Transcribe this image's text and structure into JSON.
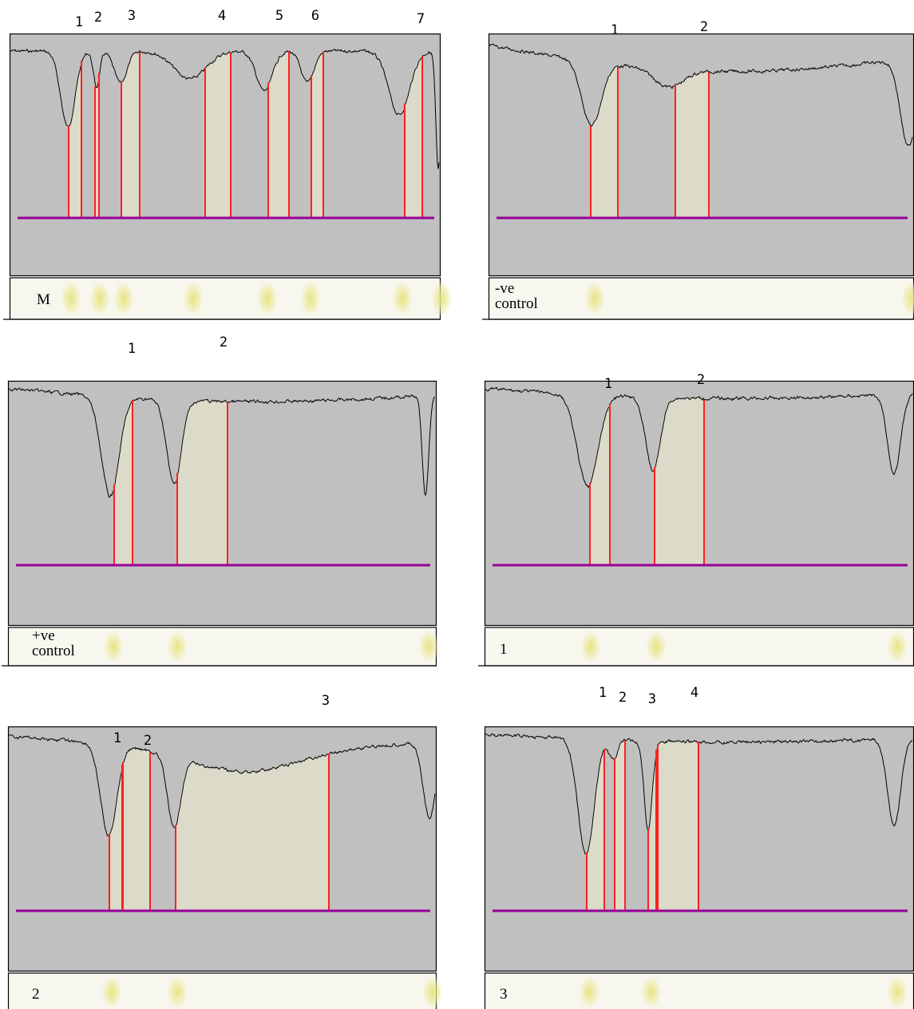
{
  "panels": [
    {
      "lane_label": "M",
      "peak_labels": [
        "1",
        "2",
        "3",
        "4",
        "5",
        "6",
        "7"
      ]
    },
    {
      "lane_label": "-ve control",
      "peak_labels": [
        "1",
        "2"
      ]
    },
    {
      "lane_label": "+ve control",
      "peak_labels": [
        "1",
        "2"
      ]
    },
    {
      "lane_label": "1",
      "peak_labels": [
        "1",
        "2"
      ]
    },
    {
      "lane_label": "2",
      "peak_labels": [
        "1",
        "2",
        "3"
      ]
    },
    {
      "lane_label": "3",
      "peak_labels": [
        "1",
        "2",
        "3",
        "4"
      ]
    }
  ]
}
